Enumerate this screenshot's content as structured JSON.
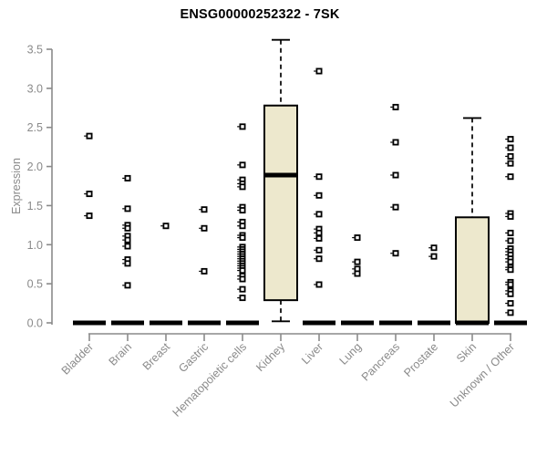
{
  "chart_data": {
    "type": "boxplot",
    "title": "ENSG00000252322 - 7SK",
    "ylabel": "Expression",
    "xlabel": "",
    "ylim": [
      0,
      3.5
    ],
    "yticks": [
      0.0,
      0.5,
      1.0,
      1.5,
      2.0,
      2.5,
      3.0,
      3.5
    ],
    "grid": "off",
    "legend": "none",
    "colors": {
      "box_fill": "#EDE8CD",
      "box_stroke": "#000000",
      "median": "#000000",
      "whisker": "#000000",
      "outlier_stroke": "#000000",
      "outlier_fill": "#FFFFFF",
      "axis": "#8a8a8a",
      "tick_label": "#8a8a8a",
      "title_text": "#000000"
    },
    "categories": [
      {
        "label": "Bladder",
        "box": {
          "q1": 0,
          "median": 0,
          "q3": 0,
          "low": 0,
          "high": 0
        },
        "points": [
          2.39,
          1.65,
          1.37
        ]
      },
      {
        "label": "Brain",
        "box": {
          "q1": 0,
          "median": 0,
          "q3": 0,
          "low": 0,
          "high": 0
        },
        "points": [
          1.85,
          1.46,
          1.25,
          1.21,
          1.11,
          1.06,
          0.98,
          0.81,
          0.76,
          0.48
        ]
      },
      {
        "label": "Breast",
        "box": {
          "q1": 0,
          "median": 0,
          "q3": 0,
          "low": 0,
          "high": 0
        },
        "points": [
          1.24
        ]
      },
      {
        "label": "Gastric",
        "box": {
          "q1": 0,
          "median": 0,
          "q3": 0,
          "low": 0,
          "high": 0
        },
        "points": [
          1.45,
          1.21,
          0.66
        ]
      },
      {
        "label": "Hematopoietic cells",
        "box": {
          "q1": 0,
          "median": 0,
          "q3": 0,
          "low": 0,
          "high": 0
        },
        "points": [
          2.51,
          2.02,
          1.83,
          1.78,
          1.74,
          1.48,
          1.44,
          1.29,
          1.24,
          1.12,
          1.09,
          0.97,
          0.94,
          0.91,
          0.88,
          0.85,
          0.82,
          0.79,
          0.76,
          0.73,
          0.7,
          0.67,
          0.6,
          0.56,
          0.43,
          0.32
        ]
      },
      {
        "label": "Kidney",
        "box": {
          "q1": 0.29,
          "median": 1.89,
          "q3": 2.78,
          "low": 0.02,
          "high": 3.62
        },
        "points": []
      },
      {
        "label": "Liver",
        "box": {
          "q1": 0,
          "median": 0,
          "q3": 0,
          "low": 0,
          "high": 0
        },
        "points": [
          3.22,
          1.87,
          1.63,
          1.39,
          1.2,
          1.15,
          1.08,
          0.93,
          0.82,
          0.49
        ]
      },
      {
        "label": "Lung",
        "box": {
          "q1": 0,
          "median": 0,
          "q3": 0,
          "low": 0,
          "high": 0
        },
        "points": [
          1.09,
          0.78,
          0.69,
          0.63
        ]
      },
      {
        "label": "Pancreas",
        "box": {
          "q1": 0,
          "median": 0,
          "q3": 0,
          "low": 0,
          "high": 0
        },
        "points": [
          2.76,
          2.31,
          1.89,
          1.48,
          0.89
        ]
      },
      {
        "label": "Prostate",
        "box": {
          "q1": 0,
          "median": 0,
          "q3": 0,
          "low": 0,
          "high": 0
        },
        "points": [
          0.96,
          0.85
        ]
      },
      {
        "label": "Skin",
        "box": {
          "q1": 0,
          "median": 0,
          "q3": 1.35,
          "low": 0,
          "high": 2.62
        },
        "points": []
      },
      {
        "label": "Unknown / Other",
        "box": {
          "q1": 0,
          "median": 0,
          "q3": 0,
          "low": 0,
          "high": 0
        },
        "points": [
          2.35,
          2.24,
          2.13,
          2.04,
          1.87,
          1.4,
          1.36,
          1.15,
          1.05,
          0.95,
          0.91,
          0.87,
          0.82,
          0.78,
          0.71,
          0.68,
          0.52,
          0.49,
          0.41,
          0.37,
          0.25,
          0.13
        ]
      }
    ]
  }
}
